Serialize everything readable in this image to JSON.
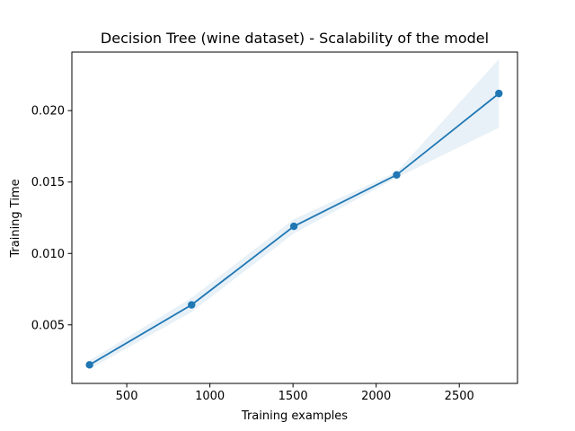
{
  "chart_data": {
    "type": "line",
    "title": "Decision Tree (wine dataset) - Scalability of the model",
    "xlabel": "Training examples",
    "ylabel": "Training Time",
    "xlim": [
      170,
      2850
    ],
    "ylim": [
      0.0009,
      0.0241
    ],
    "xticks": [
      500,
      1000,
      1500,
      2000,
      2500
    ],
    "xtick_labels": [
      "500",
      "1000",
      "1500",
      "2000",
      "2500"
    ],
    "yticks": [
      0.005,
      0.01,
      0.015,
      0.02
    ],
    "ytick_labels": [
      "0.005",
      "0.010",
      "0.015",
      "0.020"
    ],
    "grid": false,
    "legend": "none",
    "series": [
      {
        "x": [
          276,
          890,
          1505,
          2123,
          2738
        ],
        "values": [
          0.0022,
          0.0064,
          0.0119,
          0.0155,
          0.0212
        ],
        "band_lower": [
          0.0019,
          0.0059,
          0.0114,
          0.0153,
          0.0188
        ],
        "band_upper": [
          0.0025,
          0.0069,
          0.0124,
          0.0157,
          0.0236
        ],
        "color": "#1f77b4",
        "band_color": "#1f77b4"
      }
    ]
  }
}
